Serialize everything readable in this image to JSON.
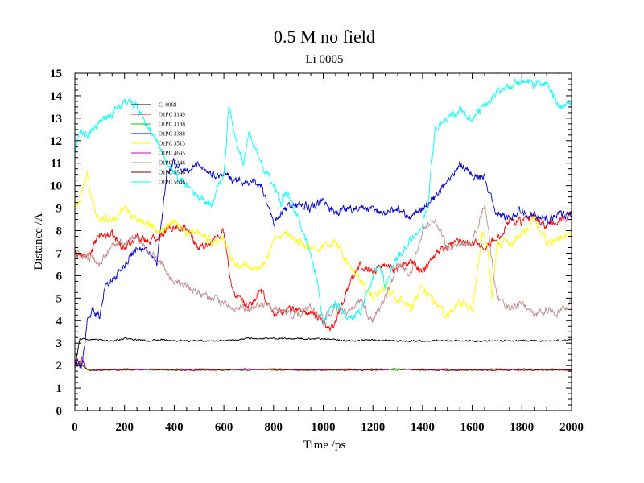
{
  "chart_data": {
    "type": "line",
    "title": "0.5 M no field",
    "subtitle": "Li 0005",
    "xlabel": "Time /ps",
    "ylabel": "Distance /A",
    "xlim": [
      0,
      2000
    ],
    "ylim": [
      0,
      15
    ],
    "x_ticks": [
      0,
      200,
      400,
      600,
      800,
      1000,
      1200,
      1400,
      1600,
      1800,
      2000
    ],
    "y_ticks": [
      0,
      1,
      2,
      3,
      4,
      5,
      6,
      7,
      8,
      9,
      10,
      11,
      12,
      13,
      14,
      15
    ],
    "grid": false,
    "legend_position": "top-left",
    "series": [
      {
        "name": "Cl 0068",
        "color": "#000000",
        "x": [
          0,
          20,
          50,
          100,
          150,
          200,
          250,
          300,
          350,
          400,
          500,
          600,
          700,
          800,
          900,
          1000,
          1100,
          1200,
          1300,
          1400,
          1500,
          1600,
          1700,
          1800,
          1900,
          2000
        ],
        "y": [
          2.0,
          3.2,
          3.2,
          3.15,
          3.1,
          3.2,
          3.15,
          3.1,
          3.15,
          3.1,
          3.1,
          3.1,
          3.2,
          3.2,
          3.2,
          3.2,
          3.1,
          3.15,
          3.1,
          3.1,
          3.1,
          3.1,
          3.1,
          3.1,
          3.1,
          3.15
        ]
      },
      {
        "name": "O1PC 3149",
        "color": "#ff0000",
        "x": [
          0,
          50,
          100,
          150,
          200,
          250,
          300,
          350,
          400,
          450,
          500,
          550,
          600,
          625,
          650,
          700,
          750,
          800,
          850,
          900,
          950,
          1000,
          1025,
          1050,
          1100,
          1150,
          1200,
          1250,
          1300,
          1350,
          1400,
          1450,
          1500,
          1550,
          1600,
          1650,
          1700,
          1750,
          1800,
          1850,
          1900,
          1950,
          2000
        ],
        "y": [
          7.0,
          6.8,
          7.8,
          7.8,
          7.2,
          7.8,
          7.5,
          7.9,
          8.2,
          8.1,
          7.2,
          7.5,
          8.0,
          5.8,
          5.0,
          4.6,
          5.3,
          4.3,
          4.5,
          4.5,
          4.3,
          4.0,
          3.6,
          4.0,
          5.5,
          6.5,
          6.2,
          6.5,
          6.3,
          6.6,
          6.2,
          7.0,
          7.3,
          7.6,
          7.5,
          7.3,
          7.6,
          8.5,
          8.4,
          8.6,
          8.2,
          8.4,
          8.8
        ]
      },
      {
        "name": "O1PC 3188",
        "color": "#00cc00",
        "x": [
          0,
          10,
          20,
          30,
          40,
          50,
          100,
          200,
          300,
          400,
          500,
          600,
          700,
          800,
          900,
          1000,
          1100,
          1200,
          1300,
          1400,
          1500,
          1600,
          1700,
          1800,
          1900,
          2000
        ],
        "y": [
          2.1,
          2.3,
          1.9,
          2.2,
          2.0,
          1.8,
          1.8,
          1.85,
          1.8,
          1.8,
          1.85,
          1.8,
          1.8,
          1.85,
          1.8,
          1.8,
          1.8,
          1.85,
          1.8,
          1.85,
          1.8,
          1.8,
          1.8,
          1.85,
          1.8,
          1.8
        ]
      },
      {
        "name": "O1PC 3388",
        "color": "#0000cc",
        "x": [
          0,
          30,
          50,
          70,
          100,
          120,
          150,
          200,
          250,
          300,
          330,
          350,
          370,
          400,
          450,
          500,
          550,
          600,
          650,
          700,
          750,
          780,
          800,
          850,
          900,
          950,
          1000,
          1050,
          1100,
          1150,
          1200,
          1250,
          1300,
          1350,
          1400,
          1450,
          1500,
          1550,
          1600,
          1650,
          1700,
          1750,
          1800,
          1850,
          1900,
          1950,
          2000
        ],
        "y": [
          2.0,
          2.0,
          4.0,
          4.5,
          4.2,
          5.5,
          5.8,
          6.5,
          7.3,
          7.0,
          6.5,
          8.5,
          10.5,
          11.0,
          10.6,
          11.0,
          10.5,
          10.5,
          10.2,
          10.2,
          10.0,
          9.0,
          8.3,
          9.0,
          9.2,
          9.0,
          9.3,
          8.8,
          9.0,
          9.0,
          8.9,
          8.8,
          9.0,
          8.6,
          9.0,
          9.5,
          10.2,
          11.0,
          10.5,
          10.3,
          8.7,
          8.6,
          8.9,
          8.7,
          8.5,
          8.8,
          8.6
        ]
      },
      {
        "name": "O1PC 3513",
        "color": "#ffff00",
        "x": [
          0,
          25,
          50,
          70,
          100,
          150,
          200,
          250,
          300,
          350,
          400,
          450,
          500,
          550,
          600,
          650,
          700,
          750,
          800,
          850,
          900,
          950,
          1000,
          1050,
          1100,
          1150,
          1200,
          1250,
          1300,
          1350,
          1400,
          1450,
          1500,
          1550,
          1600,
          1620,
          1640,
          1660,
          1680,
          1700,
          1750,
          1800,
          1850,
          1900,
          1950,
          2000
        ],
        "y": [
          9.0,
          9.5,
          10.5,
          9.2,
          8.5,
          8.5,
          9.0,
          8.5,
          8.3,
          8.0,
          8.5,
          7.8,
          8.0,
          7.5,
          7.6,
          6.5,
          6.5,
          6.3,
          7.5,
          7.8,
          7.5,
          7.2,
          7.3,
          7.5,
          6.5,
          5.8,
          5.0,
          5.5,
          5.0,
          4.5,
          5.5,
          4.8,
          4.2,
          4.8,
          4.5,
          6.0,
          8.0,
          7.5,
          5.0,
          7.5,
          7.4,
          7.8,
          8.5,
          7.5,
          7.6,
          7.8
        ]
      },
      {
        "name": "O1PC 4695",
        "color": "#cc00cc",
        "x": [
          0,
          10,
          20,
          30,
          40,
          50,
          100,
          200,
          300,
          400,
          500,
          600,
          700,
          800,
          900,
          1000,
          1100,
          1200,
          1300,
          1400,
          1500,
          1600,
          1700,
          1800,
          1900,
          2000
        ],
        "y": [
          2.1,
          2.3,
          2.0,
          2.4,
          1.9,
          1.85,
          1.8,
          1.85,
          1.8,
          1.85,
          1.8,
          1.85,
          1.8,
          1.85,
          1.8,
          1.8,
          1.85,
          1.8,
          1.85,
          1.8,
          1.85,
          1.8,
          1.85,
          1.8,
          1.85,
          1.8
        ]
      },
      {
        "name": "O1PC 5146",
        "color": "#bc8f8f",
        "x": [
          0,
          50,
          100,
          150,
          200,
          250,
          300,
          350,
          400,
          450,
          500,
          550,
          600,
          650,
          700,
          750,
          800,
          850,
          900,
          950,
          1000,
          1050,
          1100,
          1150,
          1200,
          1250,
          1300,
          1350,
          1400,
          1450,
          1500,
          1550,
          1600,
          1650,
          1700,
          1750,
          1800,
          1850,
          1900,
          1950,
          2000
        ],
        "y": [
          7.0,
          6.8,
          6.5,
          7.3,
          7.5,
          7.8,
          7.0,
          6.5,
          5.7,
          5.5,
          5.2,
          5.0,
          4.7,
          4.5,
          4.6,
          4.8,
          4.5,
          4.3,
          4.3,
          4.6,
          4.1,
          4.6,
          4.3,
          4.8,
          4.0,
          5.0,
          6.5,
          6.0,
          8.0,
          8.5,
          7.2,
          7.3,
          7.5,
          9.2,
          5.0,
          4.5,
          4.8,
          4.2,
          4.5,
          4.3,
          4.8
        ]
      },
      {
        "name": "O1PC 5546",
        "color": "#800000",
        "x": [
          0,
          20,
          40,
          60,
          100,
          200,
          300,
          400,
          500,
          600,
          700,
          800,
          900,
          1000,
          1100,
          1200,
          1300,
          1400,
          1500,
          1600,
          1700,
          1800,
          1900,
          2000
        ],
        "y": [
          1.9,
          2.2,
          1.9,
          1.8,
          1.8,
          1.8,
          1.85,
          1.8,
          1.8,
          1.8,
          1.85,
          1.8,
          1.8,
          1.8,
          1.8,
          1.8,
          1.85,
          1.8,
          1.8,
          1.8,
          1.8,
          1.8,
          1.8,
          1.8
        ]
      },
      {
        "name": "O1PC 5646",
        "color": "#00ffff",
        "x": [
          0,
          25,
          50,
          100,
          150,
          200,
          250,
          300,
          350,
          400,
          450,
          500,
          550,
          600,
          620,
          650,
          680,
          700,
          750,
          800,
          830,
          850,
          900,
          950,
          980,
          1000,
          1050,
          1100,
          1150,
          1200,
          1230,
          1250,
          1280,
          1300,
          1350,
          1400,
          1420,
          1450,
          1500,
          1550,
          1600,
          1650,
          1700,
          1750,
          1800,
          1850,
          1900,
          1950,
          2000
        ],
        "y": [
          11.5,
          12.5,
          12.2,
          12.8,
          13.2,
          13.8,
          13.5,
          12.5,
          11.5,
          10.5,
          10.0,
          9.5,
          9.2,
          10.5,
          13.5,
          12.0,
          11.0,
          12.5,
          11.0,
          10.0,
          9.2,
          9.8,
          8.5,
          7.0,
          5.5,
          4.0,
          4.8,
          4.0,
          4.4,
          6.0,
          6.5,
          5.5,
          6.5,
          6.8,
          7.5,
          8.3,
          9.0,
          12.5,
          13.0,
          13.4,
          13.0,
          13.5,
          14.2,
          14.4,
          14.7,
          14.5,
          14.6,
          13.5,
          13.8
        ]
      }
    ]
  }
}
